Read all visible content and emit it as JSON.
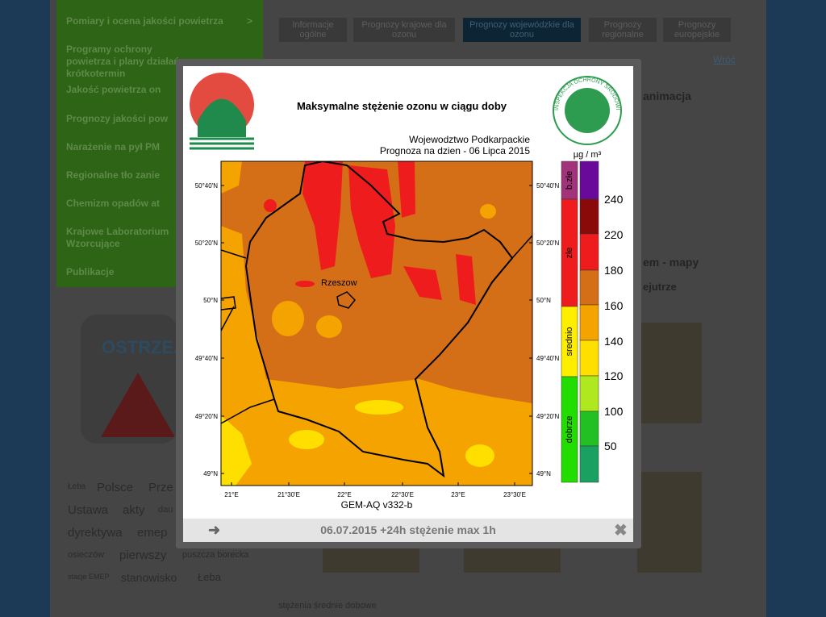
{
  "nav": [
    "Pomiary i ocena jakości powietrza",
    "Programy ochrony powietrza i plany działań krótkotermin",
    "Jakość powietrza on",
    "Prognozy jakości pow",
    "Narażenie na pył PM",
    "Regionalne tło zanie",
    "Chemizm opadów at",
    "Krajowe Laboratorium Wzorcujące",
    "Publikacje"
  ],
  "nav_arrow": ">",
  "tabs": [
    "Informacje ogólne",
    "Prognozy krajowe dla ozonu",
    "Prognozy wojewódzkie dla ozonu",
    "Prognozy regionalne",
    "Prognozy europejskie"
  ],
  "back_link": "Wróć",
  "side_texts": [
    "animacja",
    "em - mapy",
    "ejutrze"
  ],
  "warning": "OSTRZEŻ",
  "tags": [
    "Łeba",
    "Polsce",
    "Prze",
    "Ustawa",
    "akty",
    "dau",
    "dyrektywa",
    "emep",
    "osieczów",
    "pierwszy",
    "puszcza borecka",
    "stacje EMEP",
    "stanowisko",
    "Łeba"
  ],
  "bottom_caption": "stężenia średnie dobowe",
  "lightbox": {
    "title": "Maksymalne stężenie ozonu w ciągu doby",
    "region": "Wojewodztwo Podkarpackie",
    "forecast": "Prognoza na dzien -  06 Lipca 2015",
    "logo_text": "INSPEKCJA OCHRONY ŚRODOWISKA",
    "lat_labels": [
      "50°40'N",
      "50°20'N",
      "50°N",
      "49°40'N",
      "49°20'N",
      "49°N"
    ],
    "lon_labels": [
      "21°E",
      "21°30'E",
      "22°E",
      "22°30'E",
      "23°E",
      "23°30'E"
    ],
    "city": "Rzeszow",
    "model": "GEM-AQ v332-b",
    "unit": "µg / m³",
    "quality_classes": [
      "b.złe",
      "złe",
      "srednio",
      "dobrze"
    ],
    "scale_values": [
      240,
      220,
      180,
      160,
      140,
      120,
      100,
      50
    ],
    "caption": "06.07.2015 +24h stężenie max 1h"
  }
}
